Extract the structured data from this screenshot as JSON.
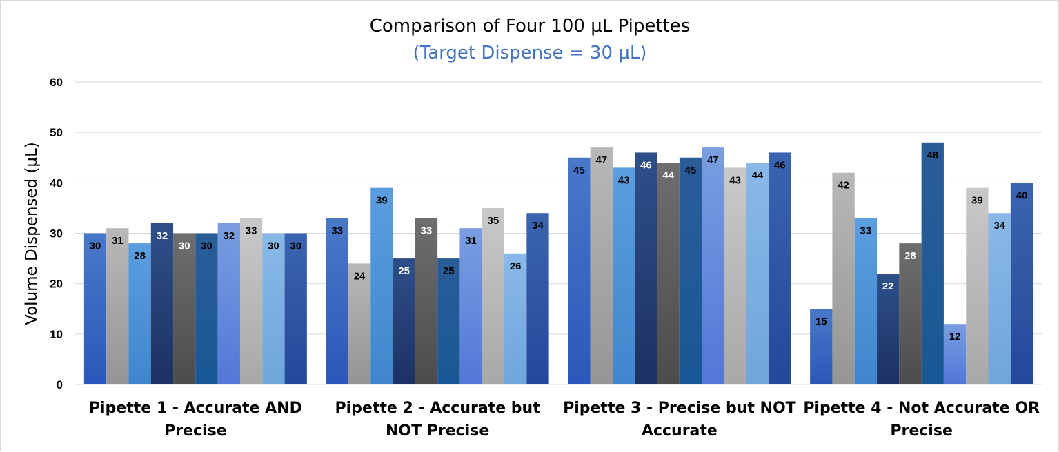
{
  "chart_data": {
    "type": "bar",
    "title": "Comparison of Four 100 μL Pipettes",
    "subtitle": "(Target Dispense = 30 μL)",
    "xlabel": "",
    "ylabel": "Volume Dispensed (μL)",
    "ylim": [
      0,
      60
    ],
    "yticks": [
      0,
      10,
      20,
      30,
      40,
      50,
      60
    ],
    "grid": true,
    "legend": "none",
    "categories": [
      "Pipette 1 - Accurate AND Precise",
      "Pipette 2 - Accurate but NOT Precise",
      "Pipette 3 - Precise but NOT Accurate",
      "Pipette 4 - Not Accurate OR Precise"
    ],
    "category_lines": [
      [
        "Pipette 1 - Accurate AND",
        "Precise"
      ],
      [
        "Pipette 2 - Accurate but",
        "NOT Precise"
      ],
      [
        "Pipette 3 - Precise but NOT",
        "Accurate"
      ],
      [
        "Pipette 4 - Not Accurate OR",
        "Precise"
      ]
    ],
    "series": [
      {
        "values": [
          30,
          33,
          45,
          15
        ]
      },
      {
        "values": [
          31,
          24,
          47,
          42
        ]
      },
      {
        "values": [
          28,
          39,
          43,
          33
        ]
      },
      {
        "values": [
          32,
          25,
          46,
          22
        ]
      },
      {
        "values": [
          30,
          33,
          44,
          28
        ]
      },
      {
        "values": [
          30,
          25,
          45,
          48
        ]
      },
      {
        "values": [
          32,
          31,
          47,
          12
        ]
      },
      {
        "values": [
          33,
          35,
          43,
          39
        ]
      },
      {
        "values": [
          30,
          26,
          44,
          34
        ]
      },
      {
        "values": [
          30,
          34,
          46,
          40
        ]
      }
    ],
    "series_colors": [
      [
        "#4a78c8",
        "#2a58ba"
      ],
      [
        "#b8b8b8",
        "#959595"
      ],
      [
        "#5b9ee0",
        "#3f86cc"
      ],
      [
        "#2f4f8a",
        "#1c3163"
      ],
      [
        "#6e6e6e",
        "#4c4c4c"
      ],
      [
        "#2a5d98",
        "#185896"
      ],
      [
        "#7a9ee0",
        "#5277d8"
      ],
      [
        "#c9c9c9",
        "#a8a8a8"
      ],
      [
        "#8ab9e8",
        "#6ea6dc"
      ],
      [
        "#3a64b0",
        "#24489a"
      ]
    ],
    "label_colors": [
      "#000000",
      "#000000",
      "#000000",
      "#ffffff",
      "#ffffff",
      "#000000",
      "#000000",
      "#000000",
      "#000000",
      "#000000"
    ]
  }
}
